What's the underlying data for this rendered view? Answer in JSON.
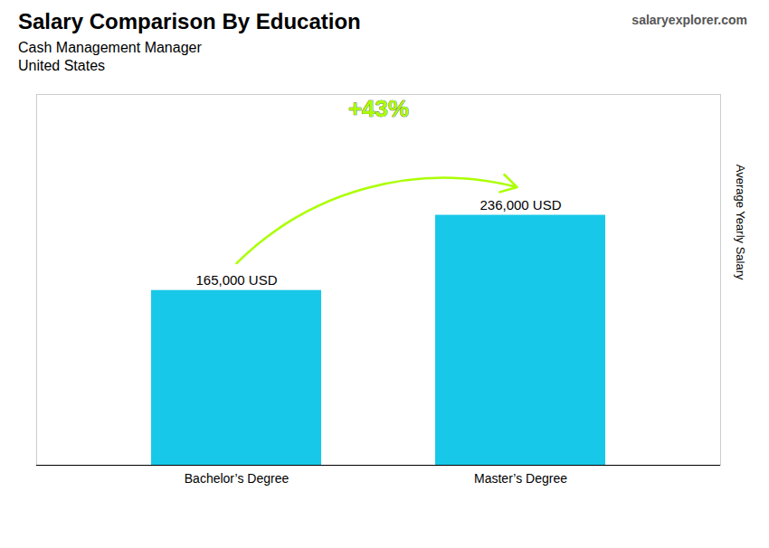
{
  "chart_data": {
    "type": "bar",
    "title": "Salary Comparison By Education",
    "subtitle": [
      "Cash Management Manager",
      "United States"
    ],
    "source": "salaryexplorer.com",
    "ylabel": "Average Yearly Salary",
    "categories": [
      "Bachelor’s Degree",
      "Master’s Degree"
    ],
    "values": [
      165000,
      236000
    ],
    "value_labels": [
      "165,000 USD",
      "236,000 USD"
    ],
    "data_labels": true,
    "color": "#18C8E8",
    "ylim": [
      0,
      350000
    ],
    "tick_labels": "x",
    "grid": false,
    "annotations": [
      {
        "text": "+43%",
        "color": "#AAFF00"
      }
    ]
  }
}
